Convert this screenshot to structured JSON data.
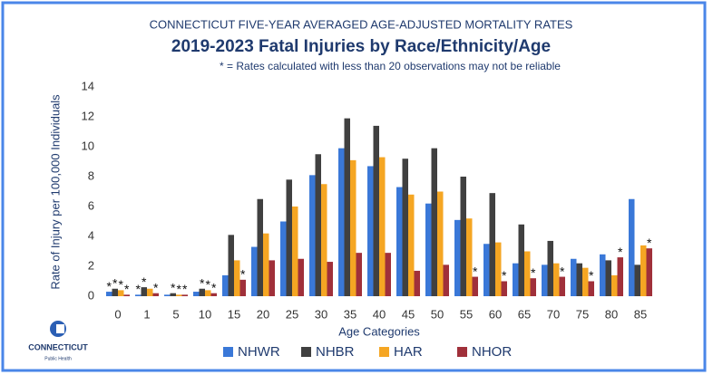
{
  "chart_data": {
    "type": "bar",
    "supertitle": "CONNECTICUT FIVE-YEAR AVERAGED AGE-ADJUSTED MORTALITY RATES",
    "title": "2019-2023 Fatal Injuries by Race/Ethnicity/Age",
    "subtitle": "* = Rates calculated with less than 20 observations may not be reliable",
    "x_label": "Age Categories",
    "y_label": "Rate of Injury per 100,000 Individuals",
    "categories": [
      "0",
      "1",
      "5",
      "10",
      "15",
      "20",
      "25",
      "30",
      "35",
      "40",
      "45",
      "50",
      "55",
      "60",
      "65",
      "70",
      "75",
      "80",
      "85"
    ],
    "series": [
      {
        "name": "NHWR",
        "color": "#3a78d8",
        "values": [
          0.3,
          0.1,
          0.1,
          0.3,
          1.4,
          3.3,
          5.0,
          8.1,
          9.9,
          8.7,
          7.3,
          6.2,
          5.1,
          3.5,
          2.2,
          2.1,
          2.5,
          2.8,
          6.5
        ],
        "notes": [
          "*",
          "*",
          null,
          null,
          null,
          null,
          null,
          null,
          null,
          null,
          null,
          null,
          null,
          null,
          null,
          null,
          null,
          null,
          null
        ]
      },
      {
        "name": "NHBR",
        "color": "#404040",
        "values": [
          0.5,
          0.6,
          0.2,
          0.5,
          4.1,
          6.5,
          7.8,
          9.5,
          11.9,
          11.4,
          9.2,
          9.9,
          8.0,
          6.9,
          4.8,
          3.7,
          2.2,
          2.4,
          2.1
        ],
        "notes": [
          "*",
          "*",
          "*",
          "*",
          null,
          null,
          null,
          null,
          null,
          null,
          null,
          null,
          null,
          null,
          null,
          null,
          null,
          null,
          null
        ]
      },
      {
        "name": "HAR",
        "color": "#f5a623",
        "values": [
          0.4,
          0.5,
          0.1,
          0.4,
          2.4,
          4.2,
          6.0,
          7.5,
          9.1,
          9.3,
          6.8,
          7.0,
          5.2,
          3.6,
          3.0,
          2.2,
          1.9,
          1.4,
          3.4
        ],
        "notes": [
          "*",
          null,
          "*",
          "*",
          null,
          null,
          null,
          null,
          null,
          null,
          null,
          null,
          null,
          null,
          null,
          null,
          null,
          null,
          null
        ]
      },
      {
        "name": "NHOR",
        "color": "#a0303a",
        "values": [
          0.1,
          0.2,
          0.1,
          0.2,
          1.1,
          2.4,
          2.5,
          2.3,
          2.9,
          2.9,
          1.7,
          2.1,
          1.3,
          1.0,
          1.2,
          1.3,
          1.0,
          2.6,
          3.2
        ],
        "notes": [
          "*",
          "*",
          "*",
          "*",
          "*",
          null,
          null,
          null,
          null,
          null,
          null,
          null,
          "*",
          "*",
          "*",
          "*",
          "*",
          "*",
          "*"
        ]
      }
    ],
    "ylim": [
      0,
      14
    ],
    "yticks": [
      0,
      2,
      4,
      6,
      8,
      10,
      12,
      14
    ],
    "grid": false,
    "legend": "bottom"
  },
  "logo": {
    "name": "CONNECTICUT",
    "sub": "Public Health"
  }
}
